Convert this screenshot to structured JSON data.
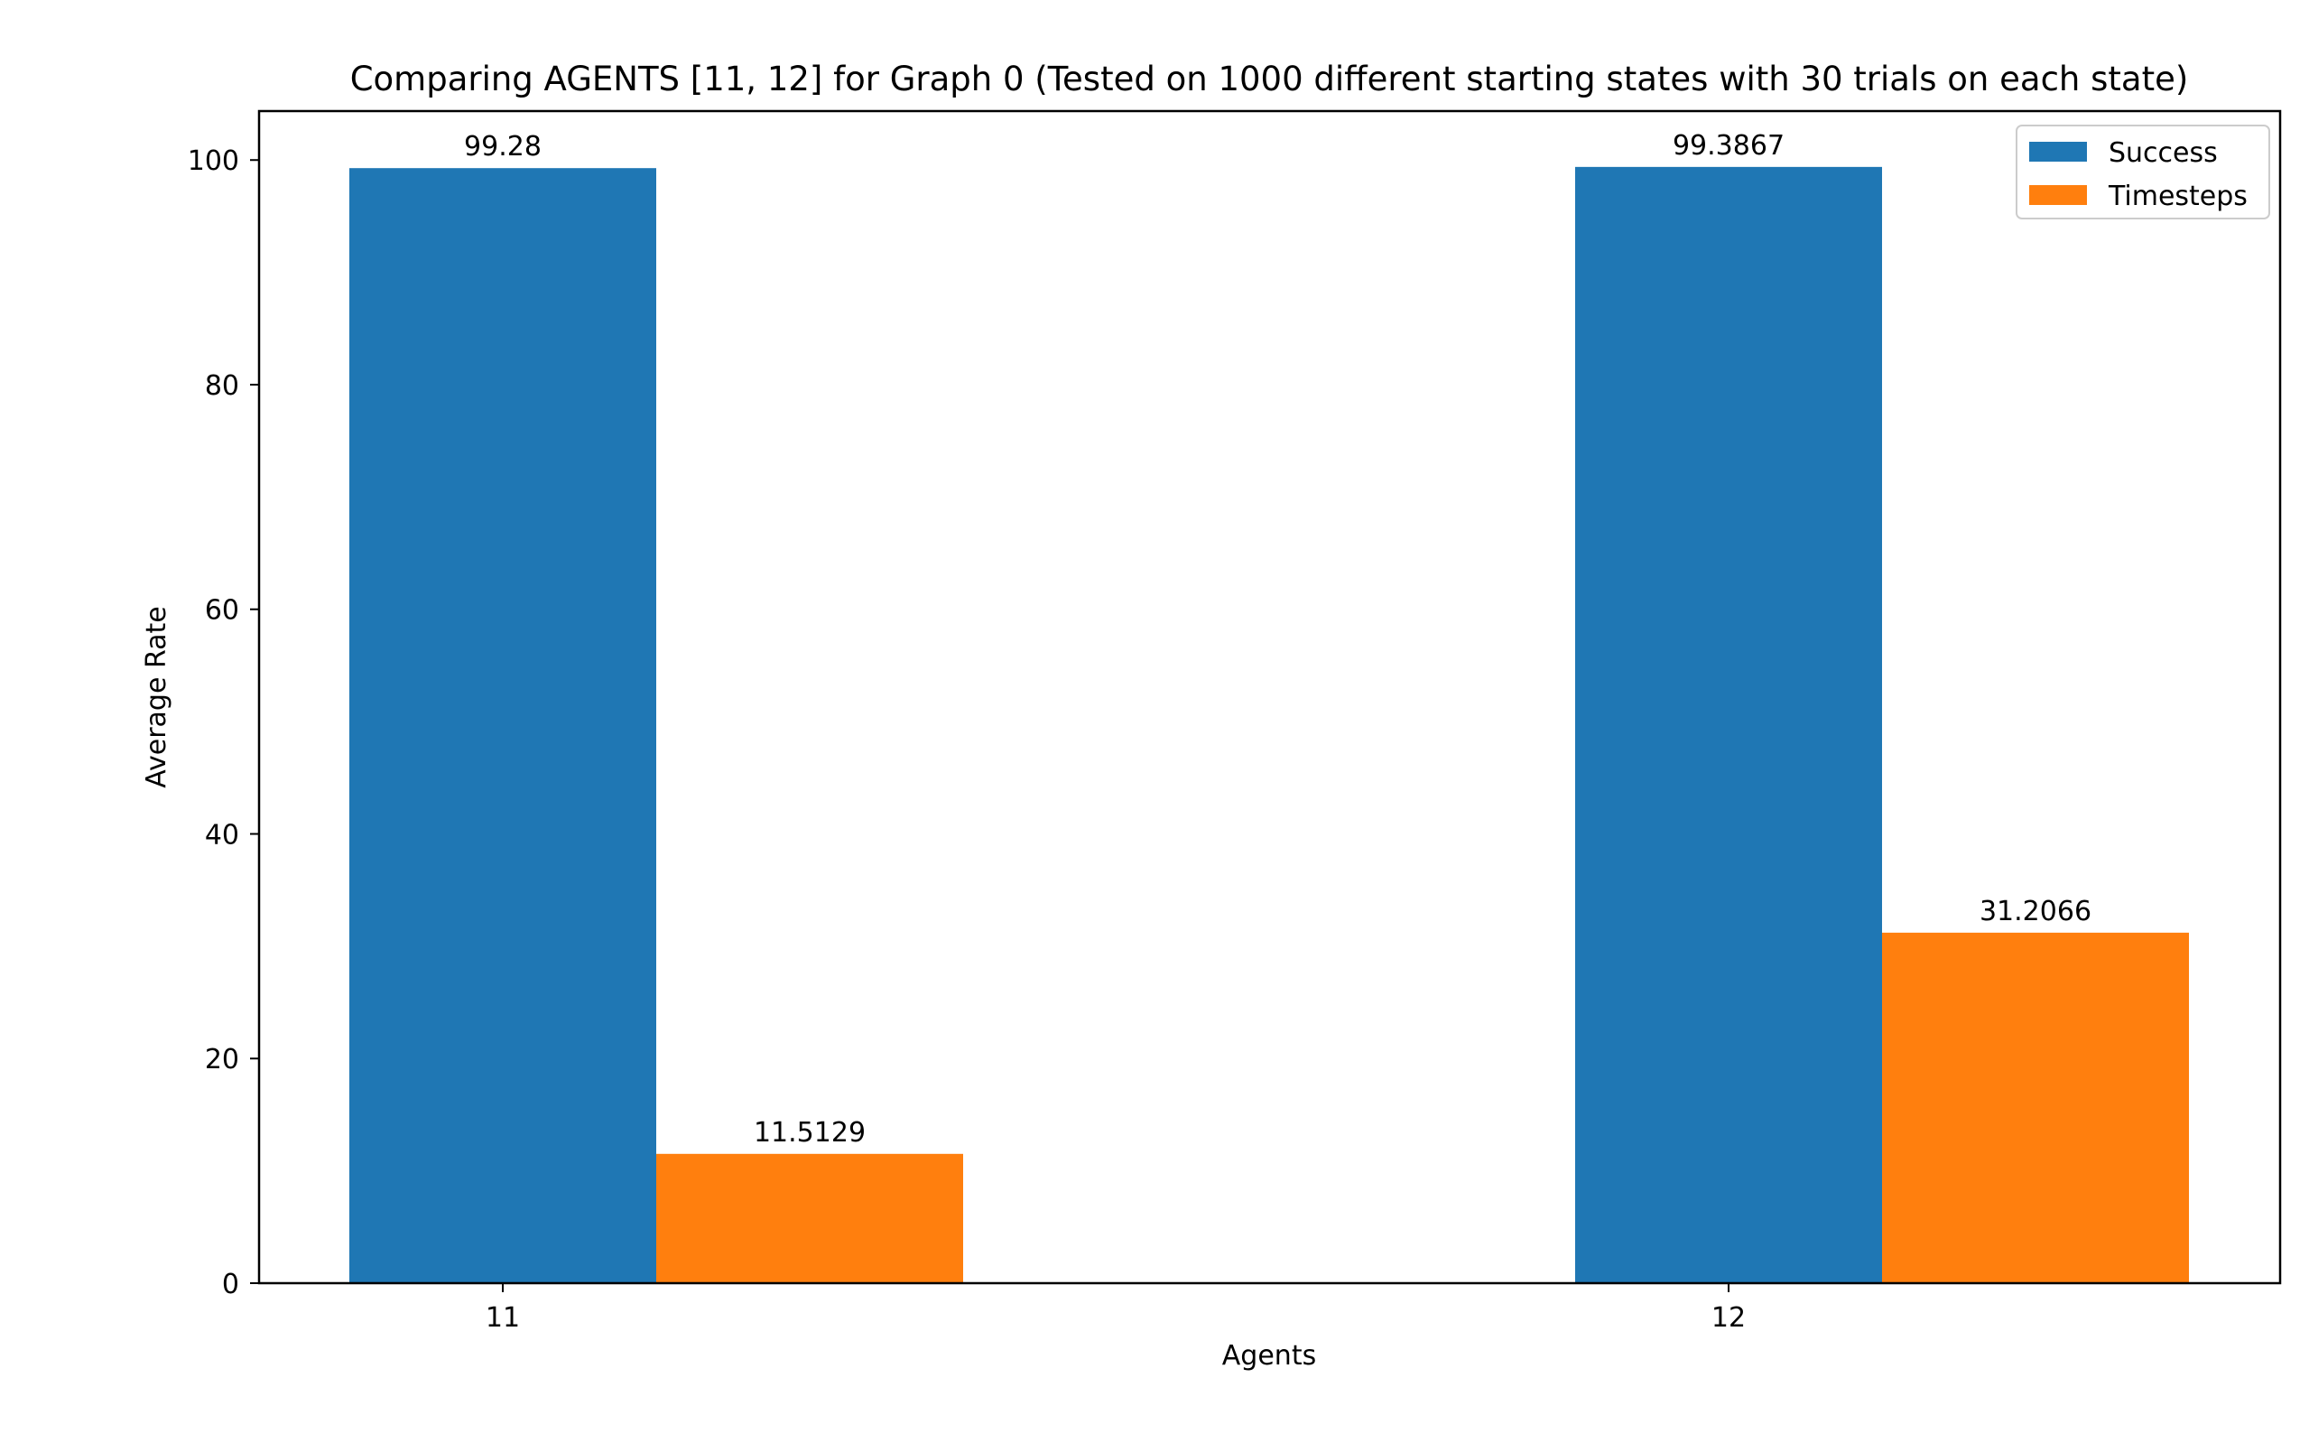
{
  "chart_data": {
    "type": "bar",
    "title": "Comparing AGENTS [11, 12] for Graph 0 (Tested on 1000 different starting states with 30 trials on each state)",
    "xlabel": "Agents",
    "ylabel": "Average Rate",
    "categories": [
      "11",
      "12"
    ],
    "series": [
      {
        "name": "Success",
        "values": [
          99.28,
          99.3867
        ],
        "labels": [
          "99.28",
          "99.3867"
        ],
        "color": "#1f77b4"
      },
      {
        "name": "Timesteps",
        "values": [
          11.5129,
          31.2066
        ],
        "labels": [
          "11.5129",
          "31.2066"
        ],
        "color": "#ff7f0e"
      }
    ],
    "ylim": [
      0,
      104.36
    ],
    "yticks": [
      0,
      20,
      40,
      60,
      80,
      100
    ],
    "legend_position": "top-right",
    "grid": false
  }
}
